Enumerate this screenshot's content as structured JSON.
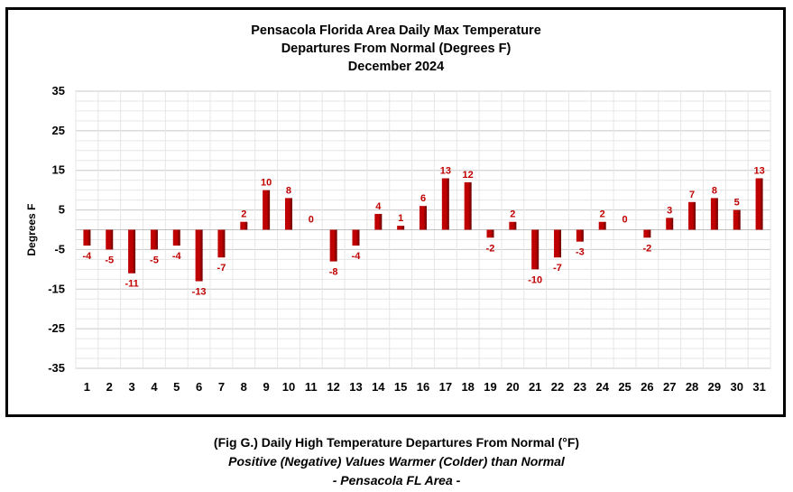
{
  "chart_data": {
    "type": "bar",
    "title": [
      "Pensacola Florida Area Daily Max Temperature",
      "Departures From Normal (Degrees F)",
      "December 2024"
    ],
    "xlabel": "",
    "ylabel": "Degrees F",
    "ylim": [
      -35,
      35
    ],
    "yticks": [
      35,
      25,
      15,
      5,
      -5,
      -15,
      -25,
      -35
    ],
    "categories": [
      "1",
      "2",
      "3",
      "4",
      "5",
      "6",
      "7",
      "8",
      "9",
      "10",
      "11",
      "12",
      "13",
      "14",
      "15",
      "16",
      "17",
      "18",
      "19",
      "20",
      "21",
      "22",
      "23",
      "24",
      "25",
      "26",
      "27",
      "28",
      "29",
      "30",
      "31"
    ],
    "values": [
      -4,
      -5,
      -11,
      -5,
      -4,
      -13,
      -7,
      2,
      10,
      8,
      0,
      -8,
      -4,
      4,
      1,
      6,
      13,
      12,
      -2,
      2,
      -10,
      -7,
      -3,
      2,
      0,
      -2,
      3,
      7,
      8,
      5,
      13
    ],
    "bar_color": "#c00000",
    "bar_dark": "#6b0000",
    "label_color": "#c00000",
    "grid": true,
    "legend": "none"
  },
  "caption": {
    "line1": "(Fig G.) Daily High Temperature Departures From Normal (°F)",
    "line2": "Positive (Negative) Values Warmer (Colder) than Normal",
    "line3": "- Pensacola FL Area -"
  }
}
